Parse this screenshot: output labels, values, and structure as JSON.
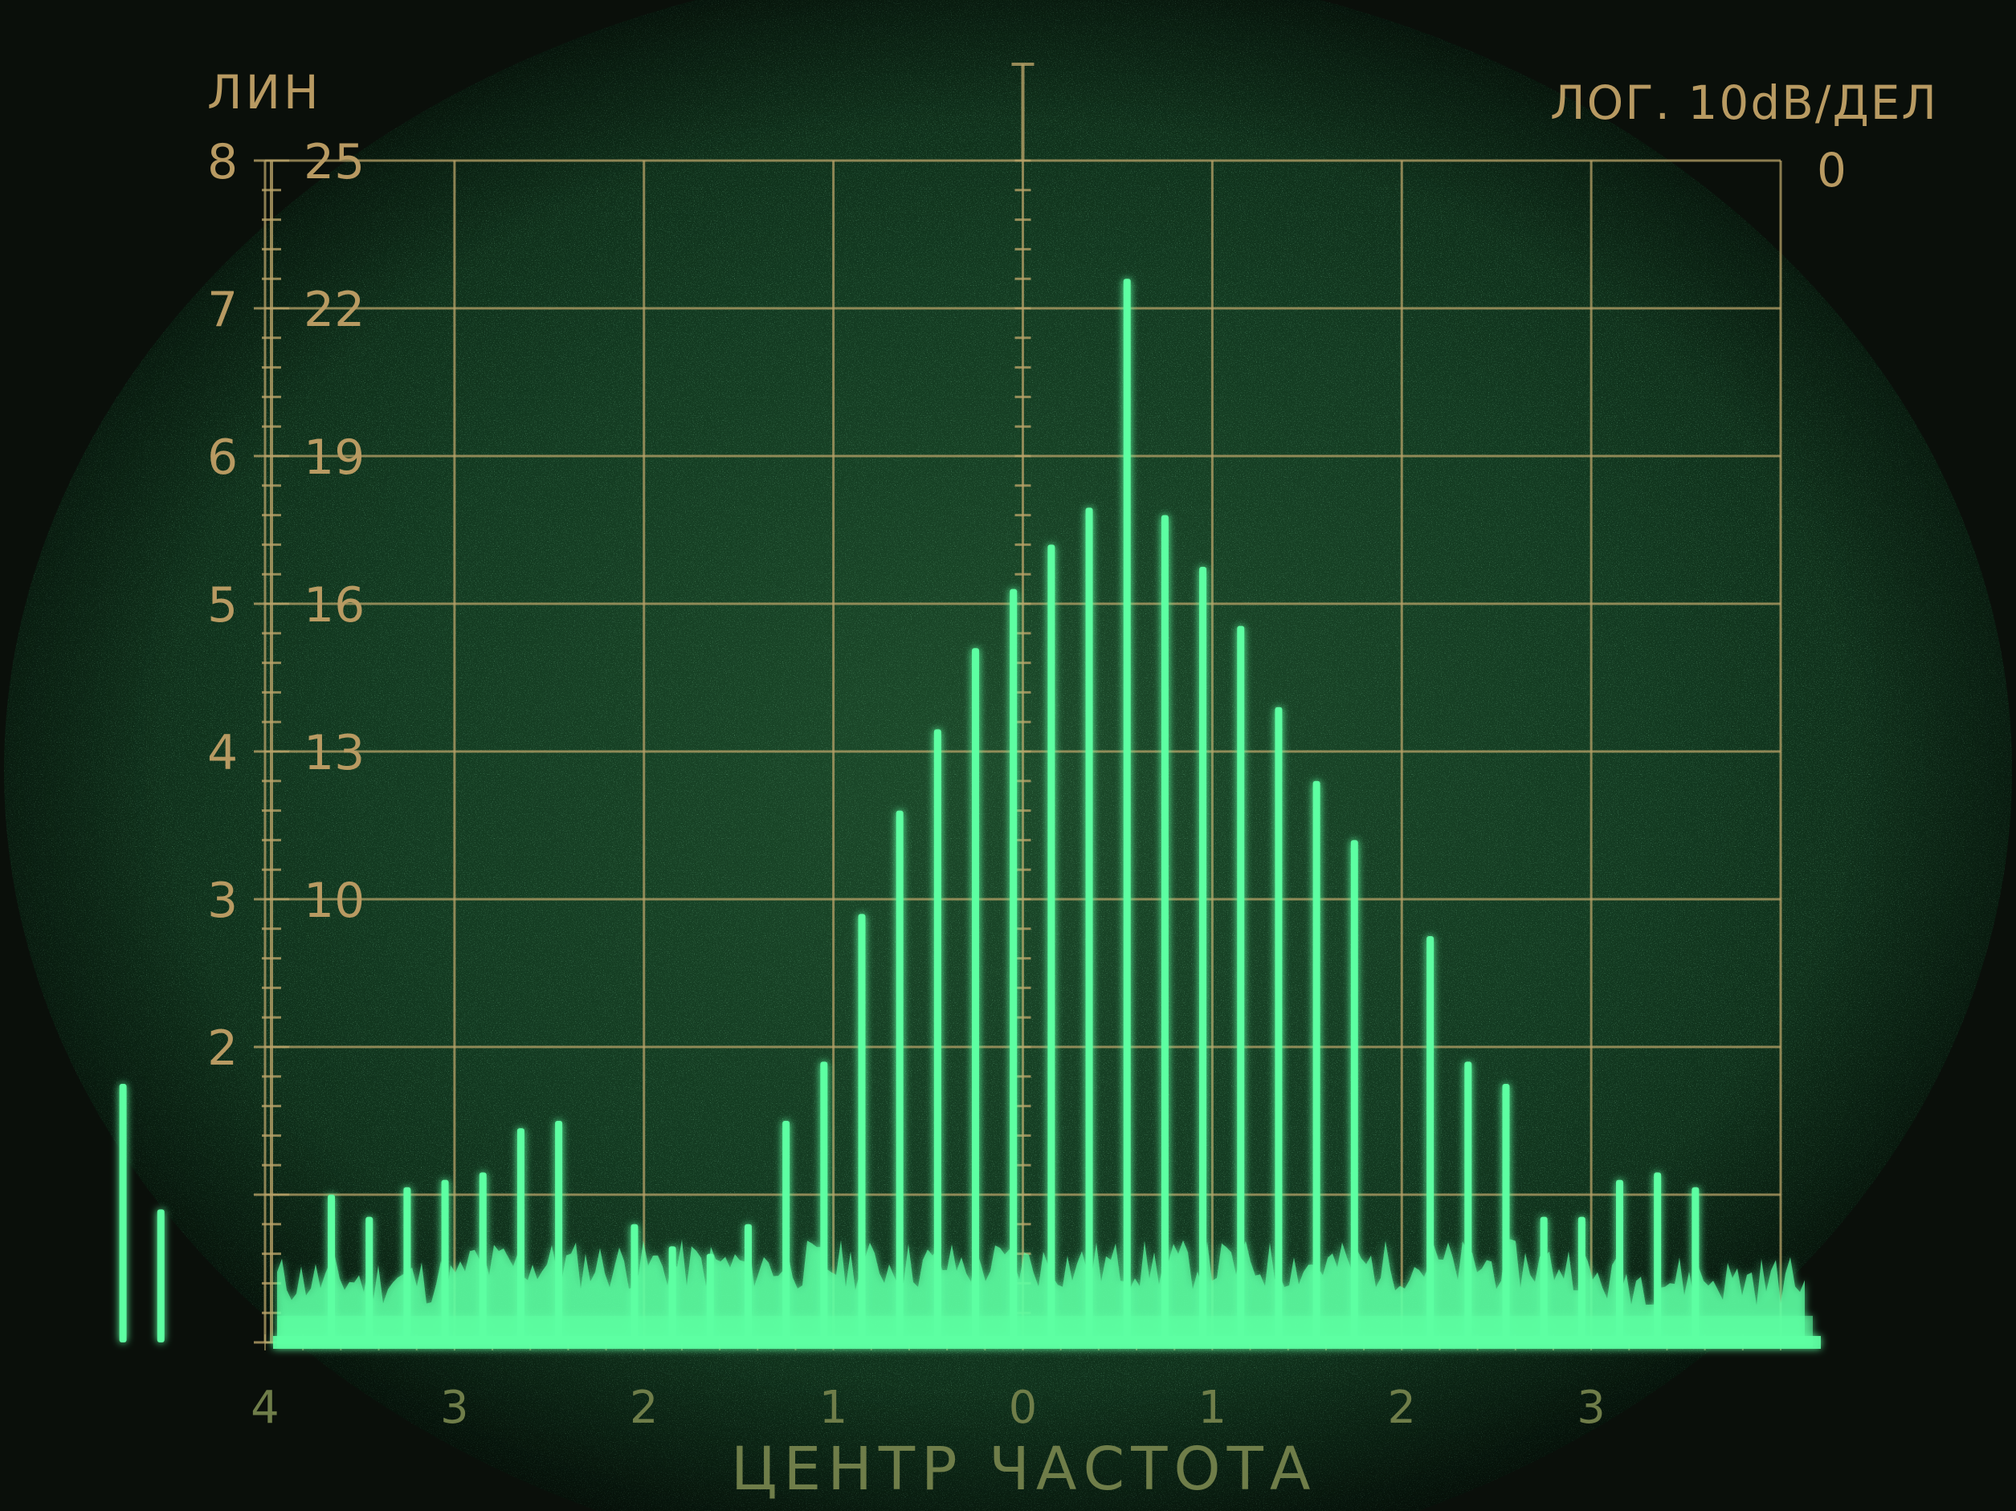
{
  "chart_data": {
    "type": "bar",
    "title": "",
    "top_left_label": "ЛИН",
    "top_right_label": "ЛОГ. 10dB/ДЕЛ",
    "top_right_tick": "0",
    "xlabel": "ЦЕНТР ЧАСТОТА",
    "x_tick_labels": [
      "4",
      "3",
      "2",
      "1",
      "0",
      "1",
      "2",
      "3"
    ],
    "y_tick_labels_lin": [
      "8",
      "7",
      "6",
      "5",
      "4",
      "3",
      "2"
    ],
    "y_tick_labels_lin_values": [
      8,
      7,
      6,
      5,
      4,
      3,
      2
    ],
    "y_tick_labels_db": [
      "25",
      "22",
      "19",
      "16",
      "13",
      "10"
    ],
    "y_tick_labels_db_values": [
      8,
      7,
      6,
      5,
      4,
      3
    ],
    "grid": true,
    "xlim": [
      -4.0,
      5.0
    ],
    "ylim": [
      0,
      8
    ],
    "x": [
      -4.75,
      -4.55,
      -3.65,
      -3.45,
      -3.25,
      -3.05,
      -2.85,
      -2.65,
      -2.45,
      -2.05,
      -1.85,
      -1.65,
      -1.45,
      -1.25,
      -1.05,
      -0.85,
      -0.65,
      -0.45,
      -0.25,
      -0.05,
      0.15,
      0.35,
      0.55,
      0.75,
      0.95,
      1.15,
      1.35,
      1.55,
      1.75,
      2.15,
      2.35,
      2.55,
      2.75,
      2.95,
      3.15,
      3.35,
      3.55
    ],
    "values": [
      1.75,
      0.9,
      1.0,
      0.85,
      1.05,
      1.1,
      1.15,
      1.45,
      1.5,
      0.8,
      0.65,
      0.6,
      0.8,
      1.5,
      1.9,
      2.9,
      3.6,
      4.15,
      4.7,
      5.1,
      5.4,
      5.65,
      7.2,
      5.6,
      5.25,
      4.85,
      4.3,
      3.8,
      3.4,
      2.75,
      1.9,
      1.75,
      0.85,
      0.85,
      1.1,
      1.15,
      1.05
    ]
  },
  "colors": {
    "trace": "#5dffa2",
    "grid": "#b8a268",
    "label": "#b89a62",
    "screen_inner": "#12381f",
    "screen_outer": "#07160c"
  }
}
